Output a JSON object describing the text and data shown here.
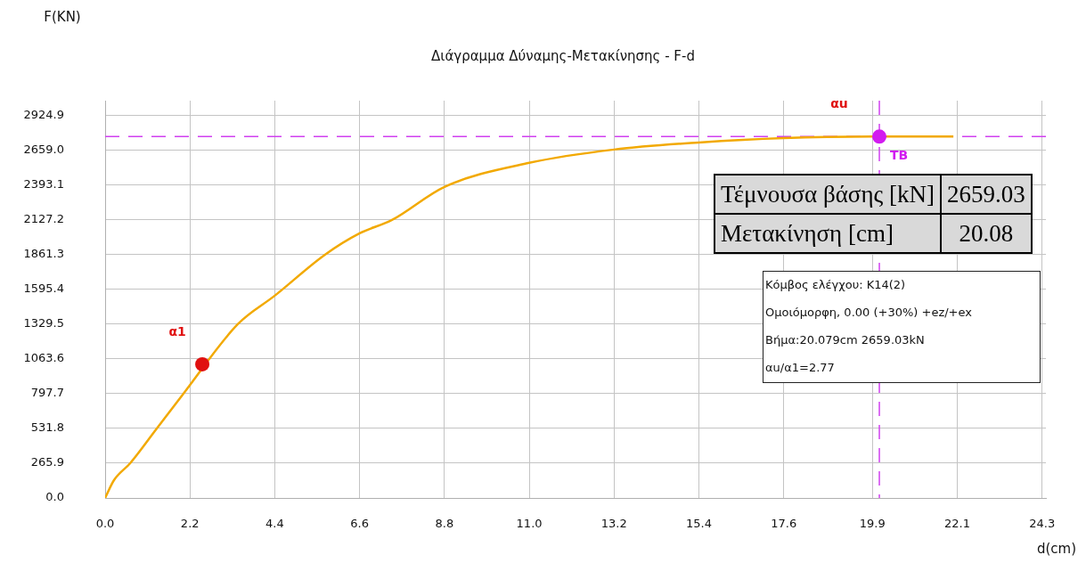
{
  "chart_data": {
    "type": "line",
    "title": "Διάγραμμα Δύναμης-Μετακίνησης - F-d",
    "xlabel": "d(cm)",
    "series": [
      {
        "color": "#f2a900",
        "marker": "none",
        "x": [
          0,
          0.23,
          0.65,
          1.34,
          2.03,
          3.44,
          4.4,
          5.7,
          6.6,
          7.44,
          8.8,
          11.0,
          13.2,
          15.4,
          17.6,
          19.9,
          22.0
        ],
        "values": [
          0,
          136,
          266,
          532,
          798,
          1330,
          1548,
          1861,
          2025,
          2127,
          2380,
          2564,
          2666,
          2720,
          2754,
          2765,
          2765
        ]
      },
      {
        "type": "scatter",
        "name": "α1",
        "color": "#e01010",
        "marker": "circle",
        "x": [
          2.52
        ],
        "values": [
          1023
        ]
      },
      {
        "type": "scatter",
        "name": "TB",
        "color": "#d21bf0",
        "marker": "circle",
        "x": [
          20.08
        ],
        "values": [
          2765
        ]
      }
    ],
    "xlim": [
      0,
      24.4
    ],
    "ylim": [
      0,
      3040
    ],
    "xticks": [
      {
        "value": 0,
        "label": "0.0"
      },
      2.2,
      4.4,
      6.6,
      8.8,
      {
        "value": 11.0,
        "label": "11.0"
      },
      13.2,
      15.4,
      17.6,
      19.9,
      22.1,
      24.3
    ],
    "yticks": [
      {
        "value": 0,
        "label": "0.0"
      },
      265.9,
      531.8,
      797.7,
      1063.6,
      1329.5,
      1595.4,
      1861.3,
      2127.2,
      2393.1,
      {
        "value": 2659.0,
        "label": "2659.0"
      },
      2924.9
    ],
    "grid": true,
    "ref_lines": [
      {
        "axis": "y",
        "value": 2765,
        "color": "#d040f0",
        "line_style": "dashed"
      },
      {
        "axis": "x",
        "value": 20.08,
        "color": "#d040f0",
        "line_style": "dashed"
      }
    ],
    "annotations": [
      "F(KN)",
      "αu",
      "Τέμνουσα βάσης [kN]",
      "2659.03",
      "Μετακίνηση [cm]",
      "20.08",
      "Κόμβος ελέγχου: K14(2)",
      "Ομοιόμορφη, 0.00 (+30%) +ez/+ex",
      "Βήμα:20.079cm 2659.03kN",
      "αu/α1=2.77"
    ]
  }
}
